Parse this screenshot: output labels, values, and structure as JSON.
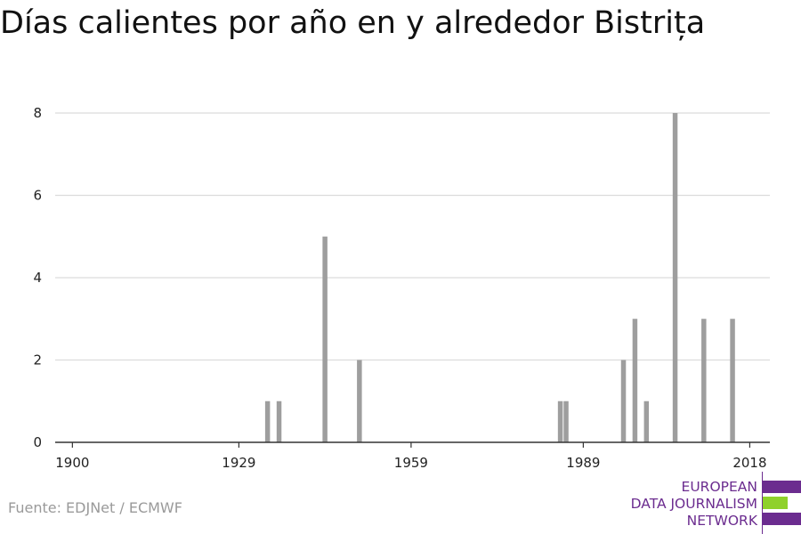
{
  "chart_data": {
    "type": "bar",
    "title": "Días calientes por año en y alrededor Bistrița",
    "xlabel": "",
    "ylabel": "",
    "xlim": [
      1897,
      2021.5
    ],
    "ylim": [
      0,
      8.8
    ],
    "x_ticks": [
      1900,
      1929,
      1959,
      1989,
      2018
    ],
    "y_ticks": [
      0,
      2,
      4,
      6,
      8
    ],
    "grid": true,
    "bar_color": "#9e9e9e",
    "x": [
      1934,
      1936,
      1944,
      1950,
      1985,
      1986,
      1996,
      1998,
      2000,
      2005,
      2010,
      2015
    ],
    "values": [
      1,
      1,
      5,
      2,
      1,
      1,
      2,
      3,
      1,
      8,
      3,
      3
    ]
  },
  "source": "Fuente: EDJNet / ECMWF",
  "logo": {
    "lines": [
      "EUROPEAN",
      "DATA JOURNALISM",
      "NETWORK"
    ],
    "colors": {
      "purple": "#6b2c8f",
      "green": "#8fd12b"
    }
  }
}
